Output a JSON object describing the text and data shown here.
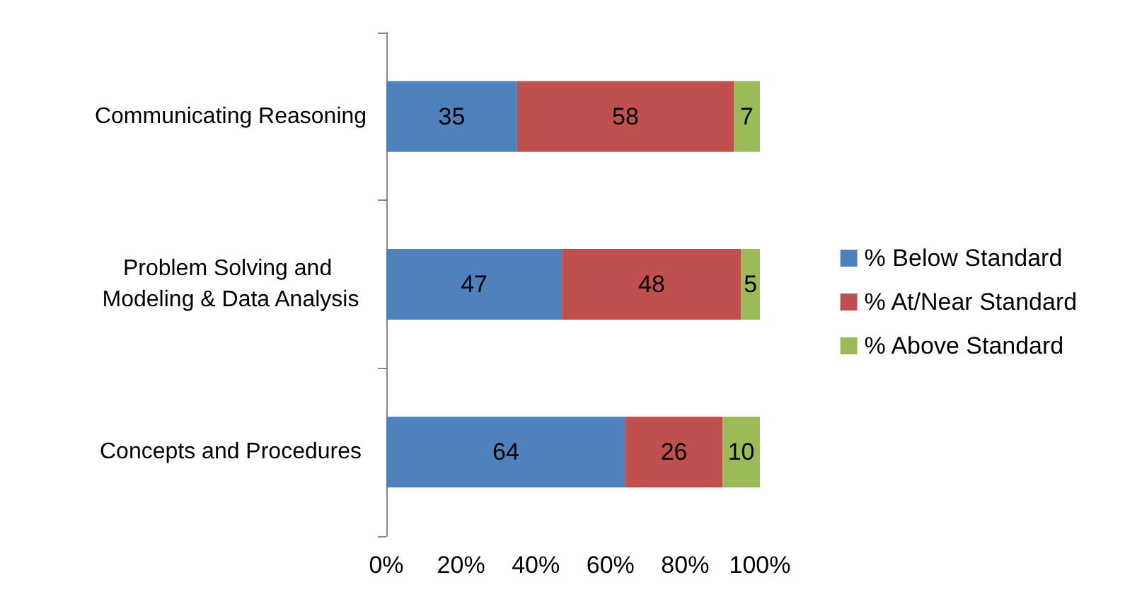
{
  "chart_data": {
    "type": "bar",
    "orientation": "horizontal",
    "stacked": true,
    "data_labels": true,
    "legend": "right",
    "grid": false,
    "categories": [
      "Communicating Reasoning",
      "Problem Solving and Modeling & Data Analysis",
      "Concepts and Procedures"
    ],
    "series": [
      {
        "name": "% Below Standard",
        "color": "#4f81bd",
        "values": [
          35,
          47,
          64
        ]
      },
      {
        "name": "% At/Near Standard",
        "color": "#c0504d",
        "values": [
          58,
          48,
          26
        ]
      },
      {
        "name": "% Above Standard",
        "color": "#9bbb59",
        "values": [
          7,
          5,
          10
        ]
      }
    ],
    "xlim": [
      0,
      100
    ],
    "xticks": [
      {
        "value": 0,
        "label": "0%"
      },
      {
        "value": 20,
        "label": "20%"
      },
      {
        "value": 40,
        "label": "40%"
      },
      {
        "value": 60,
        "label": "60%"
      },
      {
        "value": 80,
        "label": "80%"
      },
      {
        "value": 100,
        "label": "100%"
      }
    ]
  }
}
